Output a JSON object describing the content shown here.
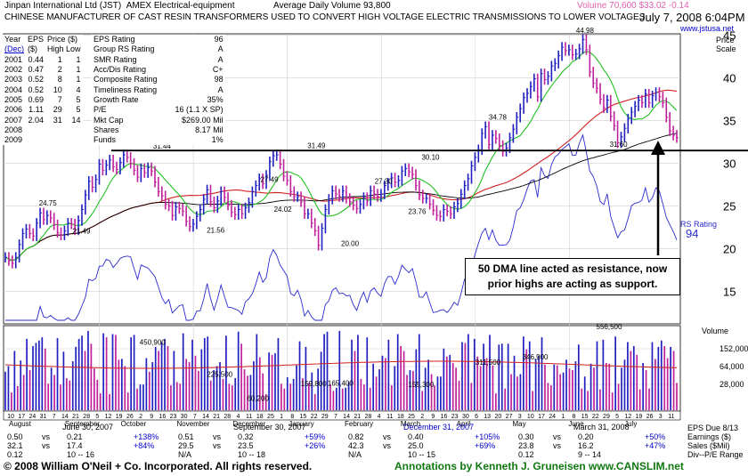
{
  "header": {
    "company": "Jinpan International Ltd",
    "ticker": "(JST)",
    "exchange": "AMEX",
    "industry": "Electrical-equipment",
    "avg_volume": "Average Daily Volume 93,800",
    "volume_quote": "Volume 70,600",
    "price_quote": "$33.02",
    "change": "-0.14",
    "description": "CHINESE MANUFACTURER OF CAST RESIN TRANSFORMERS USED TO CONVERT HIGH VOLTAGE ELECTRIC TRANSMISSIONS TO LOWER VOLTAGES",
    "date": "July 7, 2008 6:04PM",
    "website": "www.jstusa.net"
  },
  "fundamentals": {
    "head": [
      "Year",
      "EPS",
      "Price ($)"
    ],
    "subhead": [
      "(Dec)",
      "($)",
      "High Low"
    ],
    "rows": [
      [
        "2001",
        "0.44",
        "1",
        "1"
      ],
      [
        "2002",
        "0.47",
        "2",
        "1"
      ],
      [
        "2003",
        "0.52",
        "8",
        "1"
      ],
      [
        "2004",
        "0.52",
        "10",
        "4"
      ],
      [
        "2005",
        "0.69",
        "7",
        "5"
      ],
      [
        "2006",
        "1.11",
        "29",
        "5"
      ],
      [
        "2007",
        "2.04",
        "31",
        "14"
      ],
      [
        "2008",
        "",
        "",
        ""
      ],
      [
        "2009",
        "",
        "",
        ""
      ]
    ]
  },
  "ratings": [
    [
      "EPS Rating",
      "96"
    ],
    [
      "Group RS Rating",
      "A"
    ],
    [
      "SMR Rating",
      "A"
    ],
    [
      "Acc/Dis Rating",
      "C+"
    ],
    [
      "Composite Rating",
      "98"
    ],
    [
      "Timeliness Rating",
      "A"
    ],
    [
      "Growth Rate",
      "35%"
    ],
    [
      "P/E",
      "16 (1.1 X SP)"
    ],
    [
      "Mkt Cap",
      "$269.00 Mil"
    ],
    [
      "Shares",
      "8.17 Mil"
    ],
    [
      "Funds",
      "1%"
    ]
  ],
  "annotation_box": "50 DMA line acted as resistance, now prior highs are acting as support.",
  "rs_label": "RS Rating",
  "rs_value": "94",
  "price_axis_title": "Price Scale",
  "volume_axis_title": "Volume",
  "quarters": {
    "eps_due": "EPS Due 8/13",
    "earnings_label": "Earnings ($)",
    "sales_label": "Sales ($Mil)",
    "div_label": "Div--P/E Range",
    "periods": [
      {
        "title": "June 30, 2007",
        "r1": [
          "0.50",
          "vs",
          "0.21",
          "+138%"
        ],
        "r2": [
          "32.1",
          "vs",
          "17.4",
          "+84%"
        ],
        "r3": [
          "0.12",
          "",
          "10 -- 16",
          ""
        ]
      },
      {
        "title": "September 30, 2007",
        "r1": [
          "0.51",
          "vs",
          "0.32",
          "+59%"
        ],
        "r2": [
          "29.5",
          "vs",
          "23.5",
          "+26%"
        ],
        "r3": [
          "N/A",
          "",
          "10 -- 18",
          ""
        ]
      },
      {
        "title": "December 31, 2007",
        "r1": [
          "0.82",
          "vs",
          "0.40",
          "+105%"
        ],
        "r2": [
          "42.3",
          "vs",
          "25.0",
          "+69%"
        ],
        "r3": [
          "N/A",
          "",
          "10 -- 15",
          ""
        ]
      },
      {
        "title": "March 31, 2008",
        "r1": [
          "0.30",
          "vs",
          "0.20",
          "+50%"
        ],
        "r2": [
          "23.8",
          "vs",
          "16.2",
          "+47%"
        ],
        "r3": [
          "0.12",
          "",
          "9 -- 14",
          ""
        ]
      }
    ]
  },
  "footer": {
    "copyright": "© 2008 William O'Neil + Co. Incorporated.  All rights reserved.",
    "annotations": "Annotations by Kenneth J. Gruneisen www.CANSLIM.net"
  },
  "colors": {
    "up_bar": "#2020c0",
    "down_bar": "#c0209a",
    "ma50": "#21c021",
    "ma200": "#d02020",
    "rs_line": "#2a2ad0",
    "volume_avg": "#d02020",
    "header_blue": "#0000cc",
    "pink": "#e060b0",
    "footer_green": "#117711"
  },
  "chart_data": {
    "type": "candlestick",
    "y_axis_ticks": [
      15,
      20,
      25,
      30,
      35,
      40,
      45
    ],
    "volume_ticks": [
      "152,000",
      "64,000",
      "28,000"
    ],
    "months": [
      "August",
      "September",
      "October",
      "November",
      "December",
      "January",
      "February",
      "March",
      "April",
      "May",
      "June",
      "July"
    ],
    "day_ticks": [
      "10",
      "17",
      "24",
      "31",
      "7",
      "14",
      "21",
      "28",
      "5",
      "12",
      "19",
      "26",
      "2",
      "9",
      "16",
      "23",
      "30",
      "7",
      "14",
      "21",
      "28",
      "4",
      "11",
      "18",
      "25",
      "1",
      "8",
      "15",
      "22",
      "29",
      "7",
      "14",
      "21",
      "28",
      "4",
      "11",
      "18",
      "25",
      "2",
      "9",
      "16",
      "23",
      "30",
      "6",
      "13",
      "20",
      "27",
      "3",
      "10",
      "17",
      "24",
      "1",
      "8",
      "15",
      "22",
      "29",
      "5",
      "12",
      "19",
      "26",
      "3",
      "11"
    ],
    "price_labels": [
      {
        "label": "24.75",
        "value": 24.75
      },
      {
        "label": "21.49",
        "value": 21.49
      },
      {
        "label": "31.44",
        "value": 31.44
      },
      {
        "label": "21.56",
        "value": 21.56
      },
      {
        "label": "27.49",
        "value": 27.49
      },
      {
        "label": "24.02",
        "value": 24.02
      },
      {
        "label": "31.49",
        "value": 31.49
      },
      {
        "label": "20.00",
        "value": 20.0
      },
      {
        "label": "27.30",
        "value": 27.3
      },
      {
        "label": "23.76",
        "value": 23.76
      },
      {
        "label": "30.10",
        "value": 30.1
      },
      {
        "label": "34.78",
        "value": 34.78
      },
      {
        "label": "44.98",
        "value": 44.98
      },
      {
        "label": "31.60",
        "value": 31.6
      }
    ],
    "volume_labels": [
      {
        "label": "450,900",
        "value": 450900
      },
      {
        "label": "225,500",
        "value": 225500
      },
      {
        "label": "60,200",
        "value": 60200
      },
      {
        "label": "159,800",
        "value": 159800
      },
      {
        "label": "165,400",
        "value": 165400
      },
      {
        "label": "155,300",
        "value": 155300
      },
      {
        "label": "311,500",
        "value": 311500
      },
      {
        "label": "346,900",
        "value": 346900
      },
      {
        "label": "556,500",
        "value": 556500
      }
    ],
    "resistance_level": 31.5,
    "close_series": [
      19,
      18.6,
      18.3,
      19,
      20.5,
      21.8,
      22.3,
      21.8,
      21.5,
      23,
      24.2,
      23.4,
      23.9,
      23.6,
      22.8,
      21.9,
      21.6,
      22.1,
      23,
      22.9,
      22.2,
      23.3,
      24.6,
      26.3,
      27.9,
      27.2,
      28.1,
      29.9,
      29.2,
      29.8,
      30.4,
      29.6,
      29.3,
      30.1,
      31,
      30.7,
      30,
      29.2,
      28.4,
      29.4,
      28.9,
      29.5,
      29.1,
      27.8,
      26.7,
      26.2,
      25.2,
      25,
      23.9,
      24.9,
      24.7,
      24.4,
      23.2,
      22.6,
      22.9,
      23.8,
      24.6,
      25.8,
      26.9,
      25.5,
      24.8,
      25.6,
      26.7,
      26,
      25.1,
      24.3,
      24,
      24.6,
      24.1,
      24.8,
      25.4,
      26.7,
      27.4,
      28.2,
      27.6,
      28.6,
      30.2,
      30.9,
      31,
      29.9,
      28.5,
      28,
      26.7,
      26.1,
      26.1,
      25.5,
      24.1,
      24.1,
      23,
      22.1,
      20.4,
      22.4,
      24.6,
      25.8,
      26.8,
      26.4,
      26.1,
      26.8,
      25.9,
      25.5,
      25.1,
      24.7,
      25.2,
      26,
      25.6,
      26.8,
      26.4,
      26.1,
      26.4,
      27.4,
      27.7,
      28.3,
      27.8,
      28,
      29.1,
      29.4,
      29,
      28.7,
      27.4,
      26.3,
      25.9,
      25.9,
      25.2,
      24.5,
      23.9,
      23.8,
      24.6,
      24.4,
      24.1,
      24.9,
      25.3,
      26.4,
      27.4,
      28.2,
      29.7,
      30.7,
      31.6,
      33.5,
      34.3,
      32.2,
      33.3,
      32.9,
      32.1,
      31.4,
      31.8,
      33,
      34,
      35.4,
      36.4,
      37.7,
      38.2,
      39,
      39.9,
      37.8,
      40.5,
      39.8,
      40.2,
      41.4,
      41.7,
      42.6,
      43.6,
      43.2,
      43.3,
      42.7,
      42.8,
      43.4,
      44.5,
      43.3,
      40.7,
      39.4,
      38.8,
      37.5,
      36.5,
      37.4,
      35.5,
      34.4,
      32.4,
      33.1,
      34.1,
      35.2,
      36,
      36.7,
      37.4,
      37.1,
      38.1,
      37.1,
      37.9,
      38.3,
      37.8,
      37.1,
      35.4,
      33.8,
      33.3,
      33
    ],
    "volume_series": [
      48,
      55,
      22,
      74,
      30,
      62,
      44,
      89,
      50,
      80,
      84,
      87,
      91,
      77,
      33,
      53,
      44,
      90,
      32,
      73,
      40,
      37,
      61,
      79,
      89,
      93,
      74,
      99,
      83,
      52,
      38,
      21,
      96,
      91,
      20,
      95,
      94,
      63,
      64,
      55,
      22,
      91,
      94,
      27,
      32,
      32,
      65,
      48,
      60,
      79,
      74,
      85,
      89,
      80,
      31,
      74,
      35,
      33,
      96,
      64,
      60,
      88,
      68,
      49,
      76,
      90,
      92,
      37,
      50,
      55,
      60,
      39,
      93,
      33,
      31,
      40,
      98,
      83,
      51,
      43,
      44,
      61,
      95,
      66,
      46,
      20,
      72,
      69,
      71,
      90,
      33,
      27,
      41,
      33,
      39,
      56,
      86,
      40,
      79,
      34,
      47,
      20,
      52,
      73,
      95,
      98,
      32,
      24,
      28,
      99,
      27,
      28,
      35,
      88,
      74,
      94,
      39,
      32,
      91,
      28,
      58,
      42,
      51,
      68,
      65,
      88,
      31,
      55,
      95,
      80,
      74,
      44,
      50,
      49,
      76,
      95,
      24,
      53,
      63,
      45,
      31,
      42,
      42,
      77,
      67,
      69,
      59,
      53,
      37,
      85,
      84,
      95,
      34,
      89,
      67,
      55,
      83,
      65,
      94,
      56,
      21,
      82,
      83,
      27,
      83,
      45,
      68,
      42,
      45,
      92,
      76,
      86,
      24,
      64,
      68,
      91,
      57,
      34,
      31,
      57,
      56,
      45,
      47,
      63,
      52,
      50,
      61,
      82,
      27,
      42,
      24,
      58,
      53,
      86,
      26,
      88,
      59,
      58,
      22,
      92,
      33,
      53,
      63,
      85,
      74,
      80,
      69,
      26,
      59,
      50,
      27,
      85,
      64,
      79,
      87,
      80,
      65,
      79,
      74,
      34
    ]
  }
}
